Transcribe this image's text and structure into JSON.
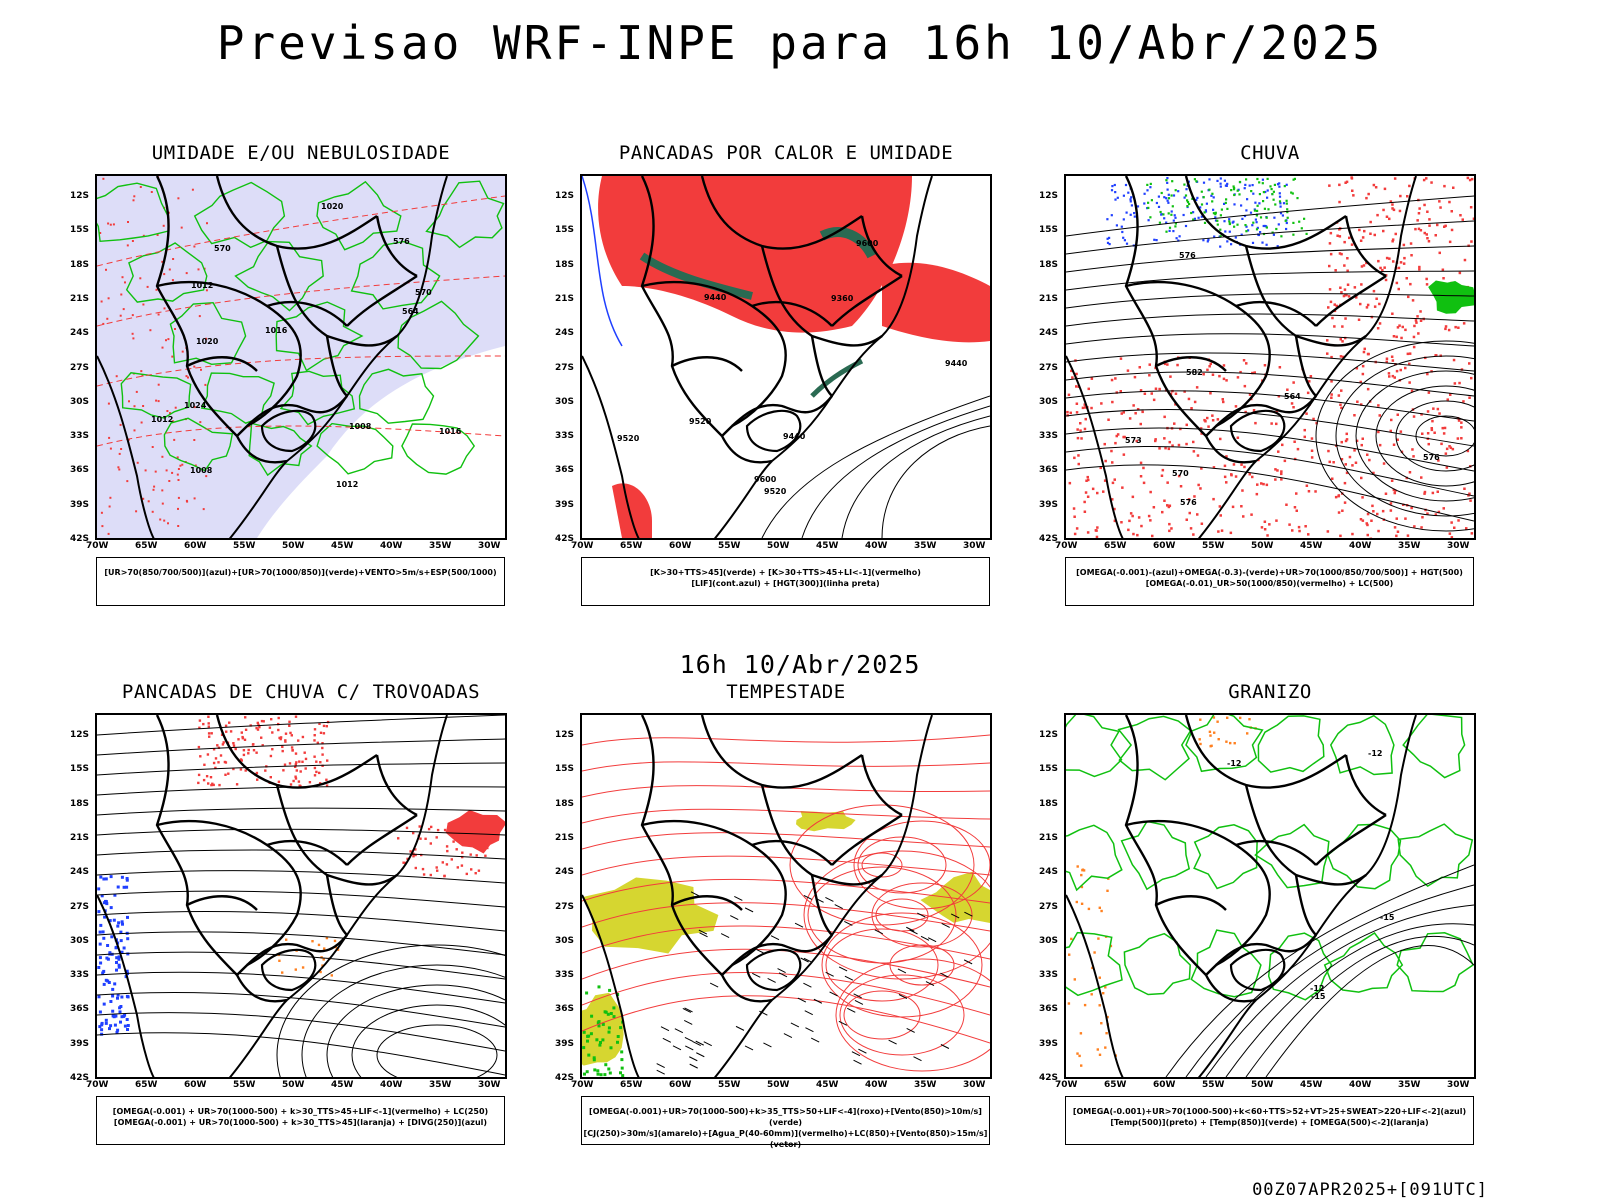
{
  "header": {
    "title": "Previsao WRF-INPE  para 16h 10/Abr/2025",
    "subtitle": "16h 10/Abr/2025",
    "footer": "00Z07APR2025+[091UTC]"
  },
  "axes": {
    "lat_ticks": [
      "12S",
      "15S",
      "18S",
      "21S",
      "24S",
      "27S",
      "30S",
      "33S",
      "36S",
      "39S",
      "42S"
    ],
    "lon_ticks": [
      "70W",
      "65W",
      "60W",
      "55W",
      "50W",
      "45W",
      "40W",
      "35W",
      "30W"
    ]
  },
  "colors": {
    "red": "#f23c3c",
    "green": "#10c010",
    "blue": "#2040ff",
    "lavender": "#b4b4f0",
    "darkgreen": "#2a6a52",
    "yellow": "#d6d630",
    "orange": "#ff8020"
  },
  "panels": [
    {
      "title": "UMIDADE E/OU NEBULOSIDADE",
      "legend_lines": [
        "[UR>70(850/700/500)](azul)+[UR>70(1000/850)](verde)+VENTO>5m/s+ESP(500/1000)"
      ],
      "labels": [
        "1008",
        "1008",
        "1012",
        "1012",
        "1012",
        "1016",
        "1016",
        "1020",
        "1020",
        "1024",
        "570",
        "570",
        "564",
        "576"
      ]
    },
    {
      "title": "PANCADAS POR CALOR E UMIDADE",
      "legend_lines": [
        "[K>30+TTS>45](verde) + [K>30+TTS>45+LI<-1](vermelho)",
        "[LIF](cont.azul) + [HGT(300)](linha preta)"
      ],
      "labels": [
        "9520",
        "9520",
        "9520",
        "9600",
        "9600",
        "9440",
        "9440",
        "9440",
        "9360"
      ]
    },
    {
      "title": "CHUVA",
      "legend_lines": [
        "[OMEGA(-0.001)-(azul)+OMEGA(-0.3)-(verde)+UR>70(1000/850/700/500)] + HGT(500)",
        "[OMEGA(-0.01)_UR>50(1000/850)(vermelho) + LC(500)"
      ],
      "labels": [
        "582",
        "576",
        "576",
        "576",
        "570",
        "573",
        "564"
      ]
    },
    {
      "title": "PANCADAS DE CHUVA C/ TROVOADAS",
      "legend_lines": [
        "[OMEGA(-0.001) + UR>70(1000-500) + k>30_TTS>45+LIF<-1](vermelho) + LC(250)",
        "[OMEGA(-0.001) + UR>70(1000-500) + k>30_TTS>45](laranja) + [DIVG(250)](azul)"
      ],
      "labels": []
    },
    {
      "title": "TEMPESTADE",
      "legend_lines": [
        "[OMEGA(-0.001)+UR>70(1000-500)+k>35_TTS>50+LIF<-4](roxo)+[Vento(850)>10m/s](verde)",
        "[CJ(250)>30m/s](amarelo)+[Agua_P(40-60mm)](vermelho)+LC(850)+[Vento(850)>15m/s](vetor)"
      ],
      "labels": []
    },
    {
      "title": "GRANIZO",
      "legend_lines": [
        "[OMEGA(-0.001)+UR>70(1000-500)+k<60+TTS>52+VT>25+SWEAT>220+LIF<-2](azul)",
        "[Temp(500)](preto) + [Temp(850)](verde) + [OMEGA(500)<-2](laranja)"
      ],
      "labels": [
        "-12",
        "-12",
        "-12",
        "-15",
        "-15"
      ]
    }
  ]
}
